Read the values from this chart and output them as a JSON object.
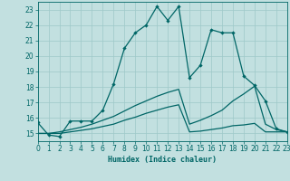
{
  "xlabel": "Humidex (Indice chaleur)",
  "xlim": [
    0,
    23
  ],
  "ylim": [
    14.5,
    23.5
  ],
  "yticks": [
    15,
    16,
    17,
    18,
    19,
    20,
    21,
    22,
    23
  ],
  "xticks": [
    0,
    1,
    2,
    3,
    4,
    5,
    6,
    7,
    8,
    9,
    10,
    11,
    12,
    13,
    14,
    15,
    16,
    17,
    18,
    19,
    20,
    21,
    22,
    23
  ],
  "bg_color": "#c2e0e0",
  "grid_color": "#9ec8c8",
  "line_color": "#006666",
  "line1_x": [
    0,
    1,
    2,
    3,
    4,
    5,
    6,
    7,
    8,
    9,
    10,
    11,
    12,
    13,
    14,
    15,
    16,
    17,
    18,
    19,
    20,
    21,
    22,
    23
  ],
  "line1_y": [
    15.7,
    14.9,
    14.8,
    15.8,
    15.8,
    15.8,
    16.5,
    18.2,
    20.5,
    21.5,
    22.0,
    23.2,
    22.3,
    23.2,
    18.6,
    19.4,
    21.7,
    21.5,
    21.5,
    18.7,
    18.1,
    17.1,
    15.3,
    15.1
  ],
  "line2_x": [
    0,
    1,
    2,
    3,
    4,
    5,
    6,
    7,
    8,
    9,
    10,
    11,
    12,
    13,
    14,
    15,
    16,
    17,
    18,
    19,
    20,
    21,
    22,
    23
  ],
  "line2_y": [
    15.0,
    15.0,
    15.0,
    15.1,
    15.2,
    15.3,
    15.45,
    15.6,
    15.85,
    16.05,
    16.3,
    16.5,
    16.7,
    16.85,
    15.1,
    15.15,
    15.25,
    15.35,
    15.5,
    15.55,
    15.65,
    15.1,
    15.1,
    15.1
  ],
  "line3_x": [
    0,
    1,
    2,
    3,
    4,
    5,
    6,
    7,
    8,
    9,
    10,
    11,
    12,
    13,
    14,
    15,
    16,
    17,
    18,
    19,
    20,
    21,
    22,
    23
  ],
  "line3_y": [
    15.0,
    15.0,
    15.1,
    15.25,
    15.4,
    15.6,
    15.85,
    16.1,
    16.45,
    16.8,
    17.1,
    17.4,
    17.65,
    17.85,
    15.6,
    15.85,
    16.15,
    16.5,
    17.1,
    17.55,
    18.05,
    15.6,
    15.25,
    15.1
  ]
}
